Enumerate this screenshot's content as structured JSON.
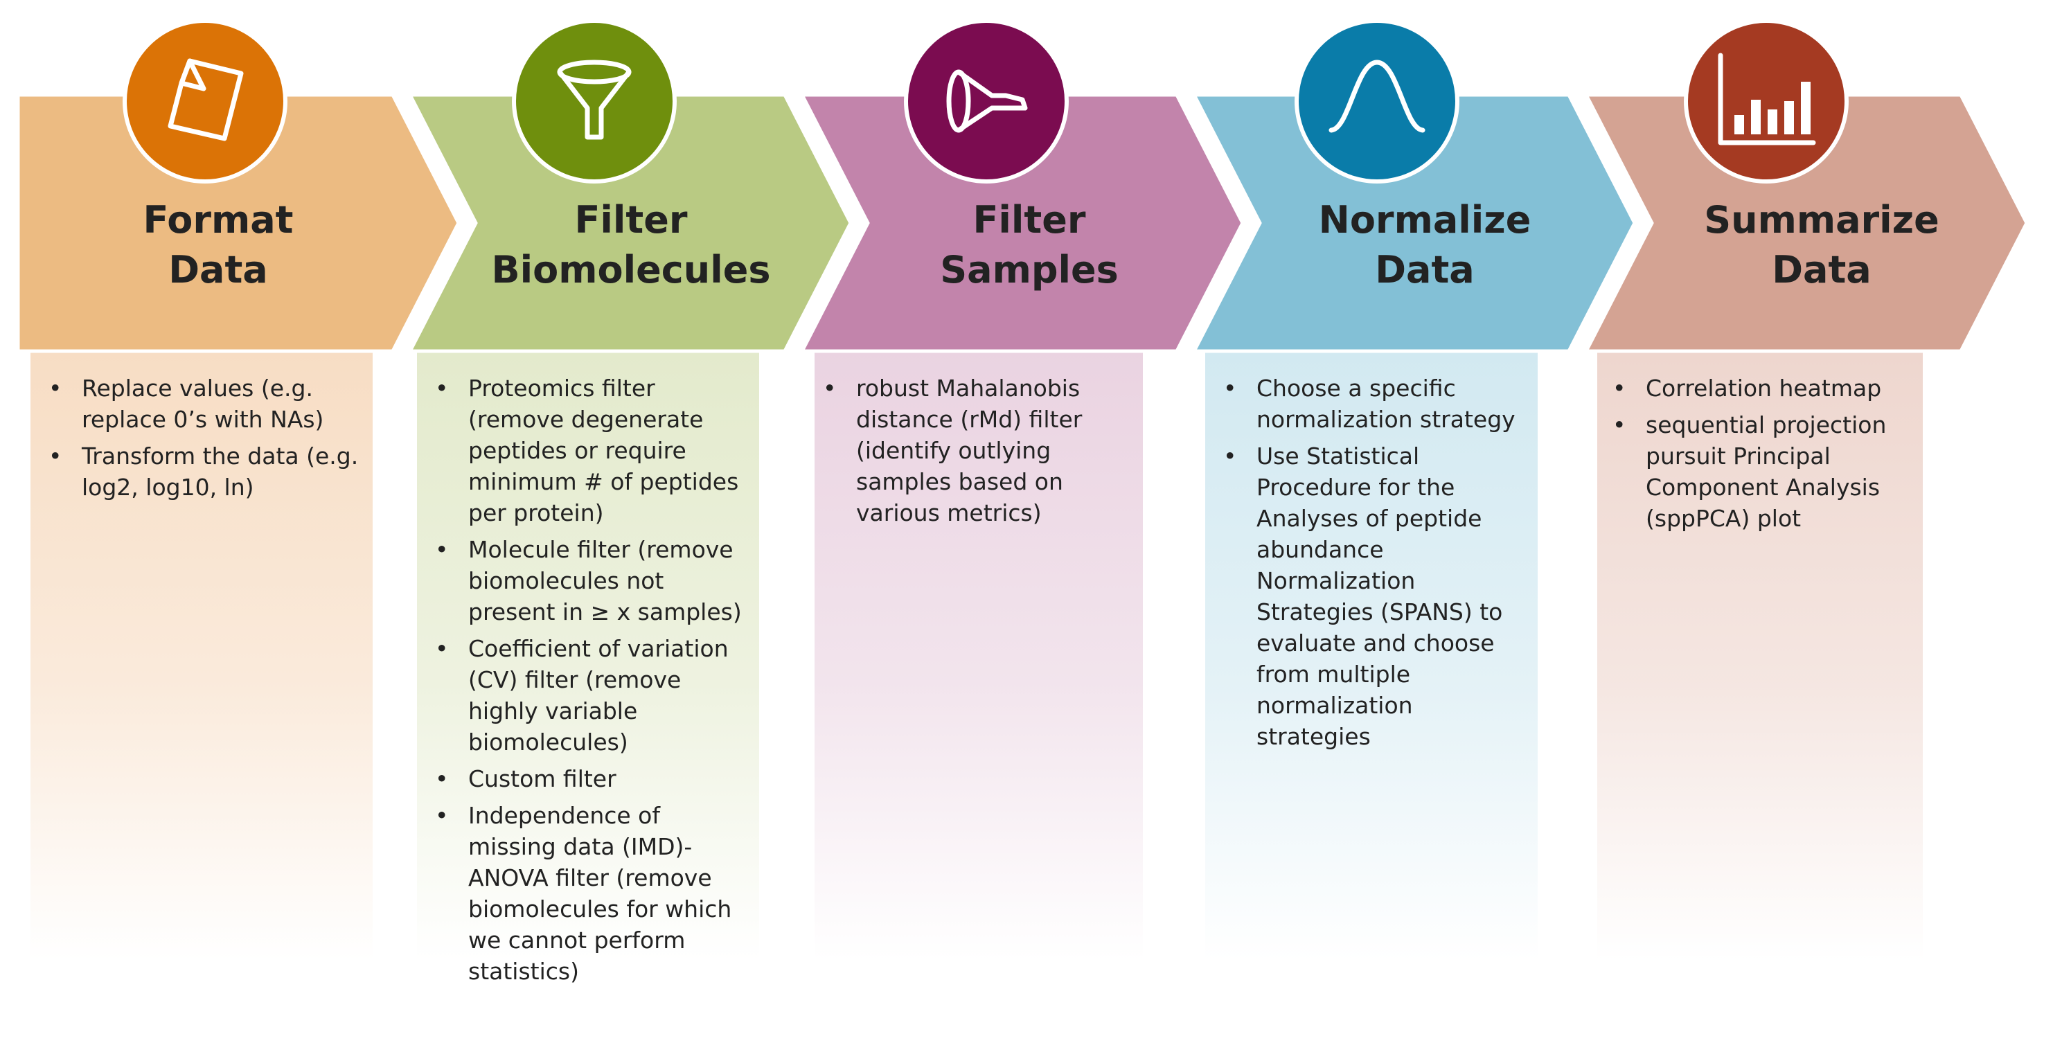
{
  "steps": [
    {
      "id": "format-data",
      "icon": "document-icon",
      "title_lines": [
        "Format",
        "Data"
      ],
      "colors": {
        "arrow": "#ecbb82",
        "circle": "#db7306",
        "panel": "#f7ddc4"
      },
      "items": [
        "Replace values (e.g. replace 0’s with NAs)",
        "Transform the data (e.g. log2, log10, ln)"
      ]
    },
    {
      "id": "filter-biomolecules",
      "icon": "funnel-icon",
      "title_lines": [
        "Filter",
        "Biomolecules"
      ],
      "colors": {
        "arrow": "#b9ca83",
        "circle": "#6f8f0d",
        "panel": "#e3eacc"
      },
      "items": [
        "Proteomics filter (remove degenerate peptides or require minimum # of peptides per protein)",
        "Molecule filter (remove biomolecules not present in ≥ x samples)",
        "Coefficient of variation (CV) filter (remove highly variable biomolecules)",
        "Custom filter",
        "Independence of missing data (IMD)-ANOVA filter (remove biomolecules for which we cannot perform statistics)"
      ]
    },
    {
      "id": "filter-samples",
      "icon": "mass-spec-icon",
      "title_lines": [
        "Filter",
        "Samples"
      ],
      "colors": {
        "arrow": "#c284ab",
        "circle": "#7b0c50",
        "panel": "#ead3e1"
      },
      "items": [
        "robust Mahalanobis distance (rMd) filter (identify outlying samples based on various metrics)"
      ]
    },
    {
      "id": "normalize-data",
      "icon": "bell-curve-icon",
      "title_lines": [
        "Normalize",
        "Data"
      ],
      "colors": {
        "arrow": "#83c0d6",
        "circle": "#0a7ca9",
        "panel": "#d2e9f1"
      },
      "items": [
        "Choose a specific normalization strategy",
        "Use Statistical Procedure for the Analyses of peptide abundance Normalization Strategies (SPANS) to evaluate and choose from multiple normalization strategies"
      ]
    },
    {
      "id": "summarize-data",
      "icon": "bar-chart-icon",
      "title_lines": [
        "Summarize",
        "Data"
      ],
      "colors": {
        "arrow": "#d4a393",
        "circle": "#a53a22",
        "panel": "#eed6ce"
      },
      "items": [
        "Correlation heatmap",
        "sequential projection pursuit Principal Component Analysis (sppPCA) plot"
      ]
    }
  ]
}
